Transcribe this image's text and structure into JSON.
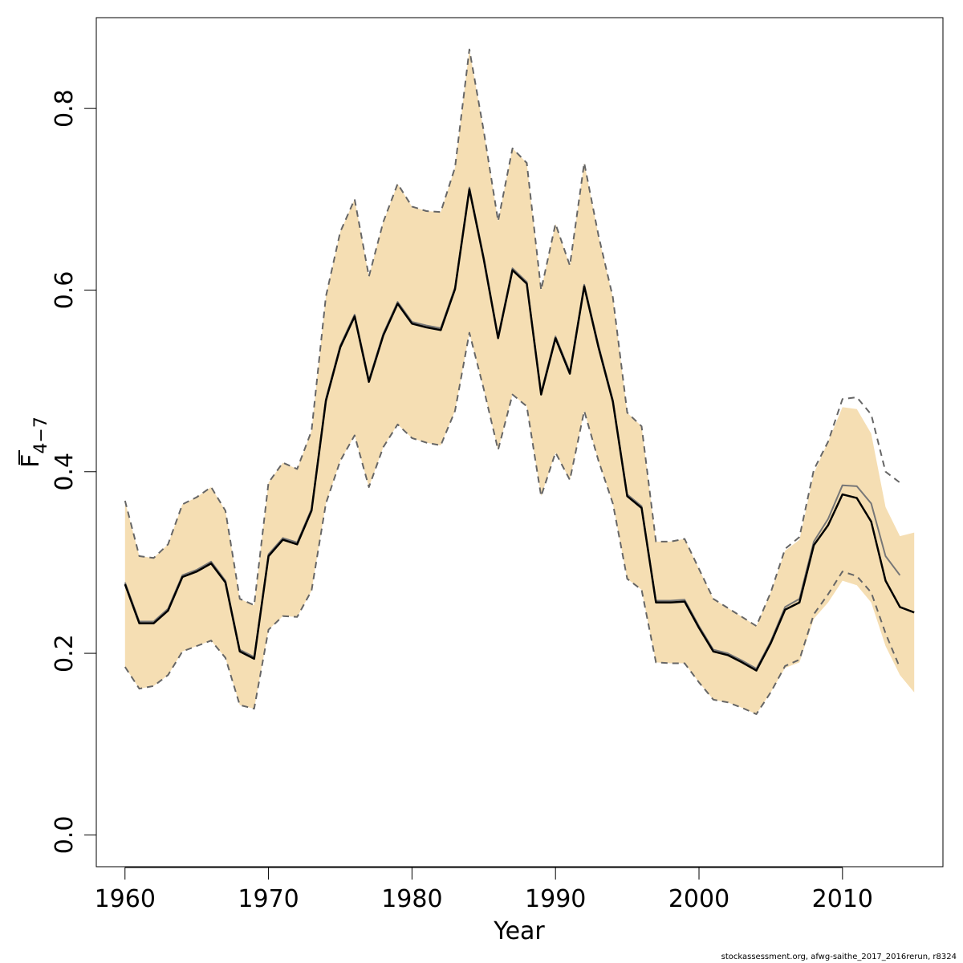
{
  "chart_data": {
    "type": "line",
    "title": "",
    "xlabel": "Year",
    "ylabel": {
      "main": "F",
      "sub": "4−7"
    },
    "xlim": [
      1958,
      2017
    ],
    "ylim": [
      -0.035,
      0.9
    ],
    "xticks": [
      1960,
      1970,
      1980,
      1990,
      2000,
      2010
    ],
    "yticks": [
      0.0,
      0.2,
      0.4,
      0.6,
      0.8
    ],
    "ytick_labels": [
      "0.0",
      "0.2",
      "0.4",
      "0.6",
      "0.8"
    ],
    "grid": false,
    "colors": {
      "band": "#f5deb3",
      "current": "#000000",
      "previous": "#777777",
      "previous_ci": "#666666"
    },
    "band": {
      "x": [
        1960,
        1961,
        1962,
        1963,
        1964,
        1965,
        1966,
        1967,
        1968,
        1969,
        1970,
        1971,
        1972,
        1973,
        1974,
        1975,
        1976,
        1977,
        1978,
        1979,
        1980,
        1981,
        1982,
        1983,
        1984,
        1985,
        1986,
        1987,
        1988,
        1989,
        1990,
        1991,
        1992,
        1993,
        1994,
        1995,
        1996,
        1997,
        1998,
        1999,
        2000,
        2001,
        2002,
        2003,
        2004,
        2005,
        2006,
        2007,
        2008,
        2009,
        2010,
        2011,
        2012,
        2013,
        2014,
        2015
      ],
      "upper": [
        0.367,
        0.307,
        0.305,
        0.32,
        0.364,
        0.372,
        0.383,
        0.357,
        0.26,
        0.253,
        0.388,
        0.41,
        0.403,
        0.445,
        0.593,
        0.664,
        0.7,
        0.615,
        0.675,
        0.717,
        0.692,
        0.687,
        0.686,
        0.735,
        0.865,
        0.775,
        0.676,
        0.756,
        0.74,
        0.6,
        0.673,
        0.627,
        0.74,
        0.66,
        0.592,
        0.465,
        0.45,
        0.323,
        0.323,
        0.326,
        0.293,
        0.26,
        0.25,
        0.24,
        0.23,
        0.267,
        0.313,
        0.325,
        0.398,
        0.433,
        0.471,
        0.469,
        0.442,
        0.361,
        0.329,
        0.333
      ],
      "lower": [
        0.185,
        0.161,
        0.164,
        0.176,
        0.202,
        0.208,
        0.214,
        0.195,
        0.143,
        0.139,
        0.226,
        0.241,
        0.24,
        0.269,
        0.365,
        0.412,
        0.44,
        0.383,
        0.427,
        0.452,
        0.437,
        0.432,
        0.429,
        0.467,
        0.553,
        0.491,
        0.424,
        0.485,
        0.472,
        0.373,
        0.421,
        0.391,
        0.467,
        0.412,
        0.365,
        0.282,
        0.27,
        0.19,
        0.189,
        0.189,
        0.168,
        0.149,
        0.146,
        0.14,
        0.133,
        0.157,
        0.184,
        0.19,
        0.238,
        0.256,
        0.28,
        0.275,
        0.256,
        0.208,
        0.176,
        0.157
      ]
    },
    "series": [
      {
        "x": [
          1960,
          1961,
          1962,
          1963,
          1964,
          1965,
          1966,
          1967,
          1968,
          1969,
          1970,
          1971,
          1972,
          1973,
          1974,
          1975,
          1976,
          1977,
          1978,
          1979,
          1980,
          1981,
          1982,
          1983,
          1984,
          1985,
          1986,
          1987,
          1988,
          1989,
          1990,
          1991,
          1992,
          1993,
          1994,
          1995,
          1996,
          1997,
          1998,
          1999,
          2000,
          2001,
          2002,
          2003,
          2004,
          2005,
          2006,
          2007,
          2008,
          2009,
          2010,
          2011,
          2012,
          2013,
          2014,
          2015
        ],
        "values": [
          0.276,
          0.233,
          0.233,
          0.247,
          0.284,
          0.29,
          0.299,
          0.278,
          0.202,
          0.194,
          0.307,
          0.325,
          0.32,
          0.357,
          0.478,
          0.537,
          0.571,
          0.499,
          0.55,
          0.585,
          0.563,
          0.559,
          0.556,
          0.601,
          0.711,
          0.634,
          0.547,
          0.622,
          0.607,
          0.485,
          0.547,
          0.508,
          0.604,
          0.537,
          0.477,
          0.373,
          0.36,
          0.256,
          0.256,
          0.257,
          0.228,
          0.202,
          0.198,
          0.19,
          0.181,
          0.211,
          0.248,
          0.256,
          0.319,
          0.341,
          0.375,
          0.371,
          0.345,
          0.28,
          0.251,
          0.245
        ],
        "color": "#000000",
        "style": "solid"
      },
      {
        "x": [
          1960,
          1961,
          1962,
          1963,
          1964,
          1965,
          1966,
          1967,
          1968,
          1969,
          1970,
          1971,
          1972,
          1973,
          1974,
          1975,
          1976,
          1977,
          1978,
          1979,
          1980,
          1981,
          1982,
          1983,
          1984,
          1985,
          1986,
          1987,
          1988,
          1989,
          1990,
          1991,
          1992,
          1993,
          1994,
          1995,
          1996,
          1997,
          1998,
          1999,
          2000,
          2001,
          2002,
          2003,
          2004,
          2005,
          2006,
          2007,
          2008,
          2009,
          2010,
          2011,
          2012,
          2013,
          2014
        ],
        "values": [
          0.278,
          0.235,
          0.235,
          0.249,
          0.286,
          0.292,
          0.301,
          0.28,
          0.204,
          0.196,
          0.309,
          0.327,
          0.322,
          0.359,
          0.48,
          0.539,
          0.573,
          0.501,
          0.552,
          0.587,
          0.565,
          0.561,
          0.558,
          0.603,
          0.713,
          0.636,
          0.549,
          0.624,
          0.609,
          0.487,
          0.549,
          0.51,
          0.606,
          0.539,
          0.479,
          0.375,
          0.362,
          0.258,
          0.258,
          0.259,
          0.23,
          0.204,
          0.2,
          0.192,
          0.183,
          0.213,
          0.251,
          0.26,
          0.323,
          0.348,
          0.385,
          0.384,
          0.365,
          0.307,
          0.286
        ],
        "color": "#777777",
        "style": "solid"
      },
      {
        "x": [
          1960,
          1961,
          1962,
          1963,
          1964,
          1965,
          1966,
          1967,
          1968,
          1969,
          1970,
          1971,
          1972,
          1973,
          1974,
          1975,
          1976,
          1977,
          1978,
          1979,
          1980,
          1981,
          1982,
          1983,
          1984,
          1985,
          1986,
          1987,
          1988,
          1989,
          1990,
          1991,
          1992,
          1993,
          1994,
          1995,
          1996,
          1997,
          1998,
          1999,
          2000,
          2001,
          2002,
          2003,
          2004,
          2005,
          2006,
          2007,
          2008,
          2009,
          2010,
          2011,
          2012,
          2013,
          2014
        ],
        "values": [
          0.368,
          0.307,
          0.305,
          0.32,
          0.364,
          0.372,
          0.383,
          0.357,
          0.26,
          0.253,
          0.388,
          0.41,
          0.403,
          0.445,
          0.593,
          0.664,
          0.7,
          0.615,
          0.675,
          0.717,
          0.692,
          0.687,
          0.686,
          0.735,
          0.865,
          0.775,
          0.676,
          0.756,
          0.74,
          0.6,
          0.673,
          0.627,
          0.74,
          0.66,
          0.592,
          0.465,
          0.45,
          0.323,
          0.323,
          0.326,
          0.293,
          0.26,
          0.25,
          0.24,
          0.23,
          0.267,
          0.315,
          0.328,
          0.402,
          0.433,
          0.48,
          0.482,
          0.463,
          0.4,
          0.388
        ],
        "color": "#666666",
        "style": "dashed"
      },
      {
        "x": [
          1960,
          1961,
          1962,
          1963,
          1964,
          1965,
          1966,
          1967,
          1968,
          1969,
          1970,
          1971,
          1972,
          1973,
          1974,
          1975,
          1976,
          1977,
          1978,
          1979,
          1980,
          1981,
          1982,
          1983,
          1984,
          1985,
          1986,
          1987,
          1988,
          1989,
          1990,
          1991,
          1992,
          1993,
          1994,
          1995,
          1996,
          1997,
          1998,
          1999,
          2000,
          2001,
          2002,
          2003,
          2004,
          2005,
          2006,
          2007,
          2008,
          2009,
          2010,
          2011,
          2012,
          2013,
          2014
        ],
        "values": [
          0.185,
          0.161,
          0.164,
          0.176,
          0.202,
          0.208,
          0.214,
          0.195,
          0.143,
          0.139,
          0.226,
          0.241,
          0.24,
          0.269,
          0.365,
          0.412,
          0.44,
          0.383,
          0.427,
          0.452,
          0.437,
          0.432,
          0.429,
          0.467,
          0.553,
          0.491,
          0.424,
          0.485,
          0.472,
          0.373,
          0.421,
          0.391,
          0.467,
          0.412,
          0.365,
          0.282,
          0.27,
          0.19,
          0.189,
          0.189,
          0.168,
          0.149,
          0.146,
          0.14,
          0.133,
          0.157,
          0.186,
          0.193,
          0.243,
          0.265,
          0.29,
          0.285,
          0.267,
          0.222,
          0.184
        ],
        "color": "#666666",
        "style": "dashed"
      }
    ]
  },
  "footer": "stockassessment.org, afwg-saithe_2017_2016rerun, r8324"
}
